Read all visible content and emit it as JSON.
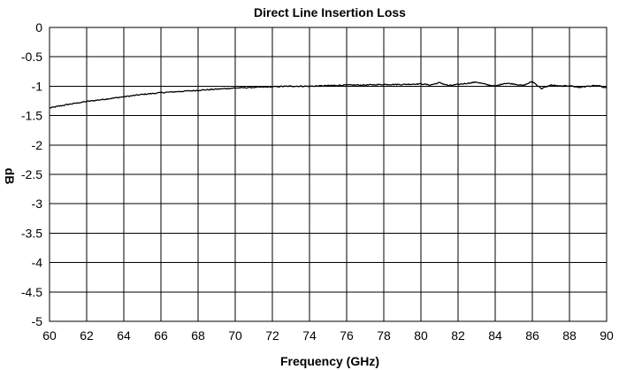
{
  "chart_data": {
    "type": "line",
    "title": "Direct Line Insertion Loss",
    "xlabel": "Frequency (GHz)",
    "ylabel": "dB",
    "xlim": [
      60,
      90
    ],
    "ylim": [
      -5,
      0
    ],
    "x_ticks": [
      "60",
      "62",
      "64",
      "66",
      "68",
      "70",
      "72",
      "74",
      "76",
      "78",
      "80",
      "82",
      "84",
      "86",
      "88",
      "90"
    ],
    "y_ticks": [
      "0",
      "-0.5",
      "-1",
      "-1.5",
      "-2",
      "-2.5",
      "-3",
      "-3.5",
      "-4",
      "-4.5",
      "-5"
    ],
    "grid": true,
    "series": [
      {
        "color": "#000000",
        "x": [
          60,
          61,
          62,
          63,
          64,
          65,
          66,
          67,
          68,
          69,
          70,
          71,
          72,
          73,
          74,
          75,
          76,
          77,
          78,
          79,
          80,
          80.5,
          81,
          81.5,
          82,
          82.5,
          83,
          83.5,
          84,
          84.5,
          85,
          85.5,
          86,
          86.5,
          87,
          87.5,
          88,
          88.5,
          89,
          89.5,
          90
        ],
        "y": [
          -1.37,
          -1.31,
          -1.26,
          -1.22,
          -1.18,
          -1.14,
          -1.11,
          -1.09,
          -1.07,
          -1.05,
          -1.03,
          -1.02,
          -1.01,
          -1.0,
          -1.0,
          -0.99,
          -0.98,
          -0.98,
          -0.97,
          -0.97,
          -0.96,
          -0.98,
          -0.94,
          -0.99,
          -0.97,
          -0.95,
          -0.93,
          -0.97,
          -1.0,
          -0.95,
          -0.96,
          -0.99,
          -0.92,
          -1.04,
          -0.98,
          -1.0,
          -0.99,
          -1.02,
          -1.0,
          -0.99,
          -1.03
        ]
      }
    ]
  }
}
